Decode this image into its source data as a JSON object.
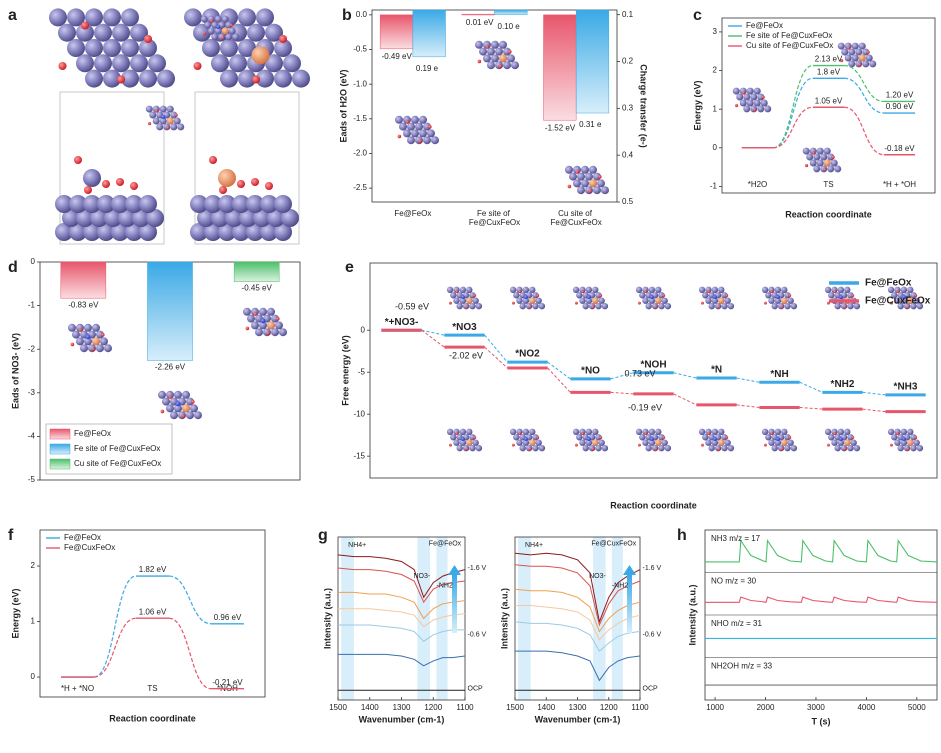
{
  "panel_labels": [
    "a",
    "b",
    "c",
    "d",
    "e",
    "f",
    "g",
    "h"
  ],
  "chart_data": [
    {
      "type": "bar_dual",
      "categories": [
        "Fe@FeOx",
        "Fe site of Fe@CuxFeOx",
        "Cu site of Fe@CuxFeOx"
      ],
      "ylabel": "Eads of H2O (eV)",
      "y2label": "Charge transfer (e-)",
      "ylim": [
        -2.7,
        0.07
      ],
      "yticks": [
        {
          "value": 0,
          "label": "0.0"
        },
        -0.5,
        {
          "value": -1,
          "label": "-1.0"
        },
        -1.5,
        {
          "value": -2,
          "label": "-2.0"
        },
        -2.5
      ],
      "y2lim": [
        0.5,
        0.09
      ],
      "y2ticks": [
        0.1,
        0.2,
        0.3,
        0.4,
        0.5
      ],
      "series": [
        {
          "color": "#e8566b",
          "values": [
            -0.49,
            0.01,
            -1.52
          ],
          "value_labels": [
            "-0.49 eV",
            "0.01 eV",
            "-1.52 eV"
          ]
        },
        {
          "color": "#3aa9e6",
          "axis": "y2",
          "values": [
            0.19,
            0.1,
            0.31
          ],
          "value_labels": [
            "0.19 e",
            "0.10 e",
            "0.31 e"
          ]
        }
      ]
    },
    {
      "type": "profile",
      "categories": [
        "*H2O",
        "TS",
        "*H + *OH"
      ],
      "ylabel": "Energy (eV)",
      "xlabel": "Reaction coordinate",
      "ylim": [
        -1.17,
        3.36
      ],
      "yticks": [
        -1,
        0,
        1,
        2,
        3
      ],
      "series": [
        {
          "name": "Fe@FeOx",
          "color": "#3aa9e6",
          "values": [
            0,
            1.8,
            0.9
          ],
          "value_labels": [
            null,
            "1.8 eV",
            "0.90 eV"
          ]
        },
        {
          "name": "Fe site of Fe@CuxFeOx",
          "color": "#4cbf6a",
          "values": [
            0,
            2.13,
            1.2
          ],
          "value_labels": [
            null,
            "2.13 eV",
            "1.20 eV"
          ]
        },
        {
          "name": "Cu site of Fe@CuxFeOx",
          "color": "#e8566b",
          "values": [
            0,
            1.05,
            -0.18
          ],
          "value_labels": [
            null,
            "1.05 eV",
            "-0.18 eV"
          ]
        }
      ]
    },
    {
      "type": "bar",
      "categories": [
        "Fe@FeOx",
        "Fe site of Fe@CuxFeOx",
        "Cu site of Fe@CuxFeOx"
      ],
      "colors": [
        "#e8566b",
        "#3aa9e6",
        "#4cbf6a"
      ],
      "values": [
        -0.83,
        -2.26,
        -0.45
      ],
      "value_labels": [
        "-0.83 eV",
        "-2.26 eV",
        "-0.45 eV"
      ],
      "ylabel": "Eads of NO3- (eV)",
      "ylim": [
        -5,
        0
      ],
      "yticks": [
        0,
        -1,
        -2,
        -3,
        -4,
        -5
      ]
    },
    {
      "type": "step",
      "categories": [
        "*+NO3-",
        "*NO3",
        "*NO2",
        "*NO",
        "*NOH",
        "*N",
        "*NH",
        "*NH2",
        "*NH3"
      ],
      "xlabel": "Reaction coordinate",
      "ylabel": "Free energy (eV)",
      "ylim": [
        -17.6,
        8
      ],
      "yticks": [
        0,
        -5,
        -10,
        -15
      ],
      "series": [
        {
          "name": "Fe@FeOx",
          "color": "#3aa9e6",
          "values": [
            0,
            -0.59,
            -3.8,
            -5.8,
            -5.07,
            -5.7,
            -6.2,
            -7.4,
            -7.7
          ]
        },
        {
          "name": "Fe@CuxFeOx",
          "color": "#e8566b",
          "values": [
            0,
            -2.02,
            -4.5,
            -7.4,
            -7.59,
            -8.9,
            -9.2,
            -9.4,
            -9.7
          ]
        }
      ],
      "annotations": [
        {
          "text": "-0.59 eV",
          "color": "#3aa9e6"
        },
        {
          "text": "-2.02 eV",
          "color": "#e8566b"
        },
        {
          "text": "0.73 eV",
          "color": "#3aa9e6"
        },
        {
          "text": "-0.19 eV",
          "color": "#e8566b"
        }
      ]
    },
    {
      "type": "profile",
      "categories": [
        "*H + *NO",
        "TS",
        "*NOH"
      ],
      "ylabel": "Energy (eV)",
      "xlabel": "Reaction coordinate",
      "ylim": [
        -0.36,
        2.65
      ],
      "yticks": [
        0,
        1,
        2
      ],
      "series": [
        {
          "name": "Fe@FeOx",
          "color": "#3aa9e6",
          "values": [
            0,
            1.82,
            0.96
          ],
          "value_labels": [
            null,
            "1.82 eV",
            "0.96 eV"
          ]
        },
        {
          "name": "Fe@CuxFeOx",
          "color": "#e8566b",
          "values": [
            0,
            1.06,
            -0.21
          ],
          "value_labels": [
            null,
            "1.06 eV",
            "-0.21 eV"
          ]
        }
      ]
    },
    {
      "type": "spectra",
      "xlabel": "Wavenumber (cm-1)",
      "ylabel": "Intensity (a.u.)",
      "x": [
        1500,
        1450,
        1400,
        1350,
        1300,
        1260,
        1230,
        1200,
        1170,
        1140,
        1100
      ],
      "xlim": [
        1500,
        1100
      ],
      "xticks": [
        1500,
        1400,
        1300,
        1200,
        1100
      ],
      "ylim": [
        0,
        10
      ],
      "bands": [
        [
          1490,
          1450
        ],
        [
          1250,
          1210
        ],
        [
          1190,
          1155
        ]
      ],
      "series": [
        {
          "color": "#8b1a1a",
          "values": [
            8.9,
            8.8,
            8.8,
            8.7,
            8.5,
            8.0,
            6.3,
            7.2,
            7.6,
            7.8,
            8.0
          ]
        },
        {
          "color": "#d9534f",
          "values": [
            8.1,
            8.0,
            8.0,
            7.9,
            7.7,
            7.3,
            6.0,
            6.8,
            7.1,
            7.2,
            7.3
          ]
        },
        {
          "color": "#f0a050",
          "values": [
            6.6,
            6.6,
            6.5,
            6.5,
            6.3,
            6.0,
            5.0,
            5.6,
            5.9,
            6.0,
            6.1
          ]
        },
        {
          "color": "#f5c9a0",
          "values": [
            5.6,
            5.6,
            5.6,
            5.5,
            5.4,
            5.2,
            4.5,
            4.9,
            5.1,
            5.2,
            5.3
          ]
        },
        {
          "color": "#9ecae1",
          "values": [
            4.6,
            4.6,
            4.6,
            4.5,
            4.4,
            4.2,
            3.6,
            4.0,
            4.2,
            4.3,
            4.3
          ]
        },
        {
          "color": "#3a6fb0",
          "values": [
            2.8,
            2.8,
            2.8,
            2.8,
            2.7,
            2.5,
            2.1,
            2.4,
            2.6,
            2.6,
            2.7
          ]
        },
        {
          "color": "#222222",
          "values": [
            0.6,
            0.6,
            0.6,
            0.6,
            0.6,
            0.6,
            0.6,
            0.6,
            0.6,
            0.6,
            0.6
          ]
        }
      ],
      "annotations": [
        "NH4+",
        "NO3-",
        "-NH2",
        "Fe@FeOx",
        "-1.6 V",
        "-0.6 V",
        "OCP"
      ]
    },
    {
      "type": "spectra",
      "xlabel": "Wavenumber (cm-1)",
      "ylabel": "Intensity (a.u.)",
      "x": [
        1500,
        1450,
        1400,
        1350,
        1300,
        1260,
        1230,
        1200,
        1170,
        1140,
        1100
      ],
      "xlim": [
        1500,
        1100
      ],
      "xticks": [
        1500,
        1400,
        1300,
        1200,
        1100
      ],
      "ylim": [
        0,
        10
      ],
      "bands": [
        [
          1490,
          1450
        ],
        [
          1250,
          1210
        ],
        [
          1190,
          1155
        ]
      ],
      "series": [
        {
          "color": "#8b1a1a",
          "values": [
            9.0,
            8.9,
            9.0,
            8.9,
            8.6,
            7.8,
            4.8,
            6.3,
            7.2,
            7.6,
            8.0
          ]
        },
        {
          "color": "#d9534f",
          "values": [
            8.3,
            8.2,
            8.2,
            8.1,
            7.8,
            7.0,
            4.6,
            5.9,
            6.7,
            7.0,
            7.3
          ]
        },
        {
          "color": "#f0a050",
          "values": [
            6.8,
            6.7,
            6.7,
            6.6,
            6.3,
            5.7,
            4.2,
            5.0,
            5.5,
            5.8,
            6.0
          ]
        },
        {
          "color": "#f5c9a0",
          "values": [
            5.8,
            5.8,
            5.7,
            5.6,
            5.4,
            4.9,
            3.7,
            4.3,
            4.7,
            5.0,
            5.2
          ]
        },
        {
          "color": "#9ecae1",
          "values": [
            4.8,
            4.7,
            4.7,
            4.6,
            4.4,
            4.0,
            3.0,
            3.5,
            3.9,
            4.1,
            4.2
          ]
        },
        {
          "color": "#3a6fb0",
          "values": [
            3.0,
            3.0,
            3.0,
            2.9,
            2.7,
            2.4,
            1.2,
            2.0,
            2.4,
            2.6,
            2.7
          ]
        },
        {
          "color": "#222222",
          "values": [
            0.6,
            0.6,
            0.6,
            0.6,
            0.6,
            0.6,
            0.6,
            0.6,
            0.6,
            0.6,
            0.6
          ]
        }
      ],
      "annotations": [
        "NH4+",
        "NO3-",
        "-NH2",
        "Fe@CuxFeOx",
        "-1.6 V",
        "-0.6 V",
        "OCP"
      ]
    },
    {
      "type": "timeseries",
      "xlabel": "T (s)",
      "ylabel": "Intensity (a.u.)",
      "xlim": [
        800,
        5400
      ],
      "xticks": [
        1000,
        2000,
        3000,
        4000,
        5000
      ],
      "ylim": [
        0,
        4
      ],
      "series": [
        {
          "name": "NH3 m/z = 17",
          "color": "#4cbf6a",
          "x": [
            800,
            1480,
            1510,
            1710,
            1960,
            2010,
            2040,
            2240,
            2490,
            2710,
            2740,
            2940,
            3190,
            3330,
            3360,
            3560,
            3810,
            4000,
            4030,
            4230,
            4480,
            4600,
            4630,
            4830,
            5080,
            5400
          ],
          "values": [
            3.25,
            3.25,
            3.75,
            3.4,
            3.27,
            3.25,
            3.75,
            3.4,
            3.27,
            3.25,
            3.75,
            3.4,
            3.27,
            3.25,
            3.75,
            3.4,
            3.27,
            3.25,
            3.75,
            3.4,
            3.27,
            3.25,
            3.75,
            3.4,
            3.27,
            3.25
          ]
        },
        {
          "name": "NO m/z = 30",
          "color": "#e8566b",
          "x": [
            800,
            1480,
            1510,
            1710,
            1960,
            2010,
            2040,
            2240,
            2490,
            2710,
            2740,
            2940,
            3190,
            3330,
            3360,
            3560,
            3810,
            4000,
            4030,
            4230,
            4480,
            4600,
            4630,
            4830,
            5080,
            5400
          ],
          "values": [
            2.3,
            2.3,
            2.42,
            2.34,
            2.31,
            2.3,
            2.42,
            2.34,
            2.31,
            2.3,
            2.42,
            2.34,
            2.31,
            2.3,
            2.42,
            2.34,
            2.31,
            2.3,
            2.42,
            2.34,
            2.31,
            2.3,
            2.42,
            2.34,
            2.31,
            2.3
          ]
        },
        {
          "name": "NHO m/z = 31",
          "color": "#2fb8e0",
          "x": [
            800,
            5400
          ],
          "values": [
            1.45,
            1.45
          ]
        },
        {
          "name": "NH2OH m/z = 33",
          "color": "#777777",
          "x": [
            800,
            5400
          ],
          "values": [
            0.35,
            0.35
          ]
        }
      ]
    }
  ]
}
